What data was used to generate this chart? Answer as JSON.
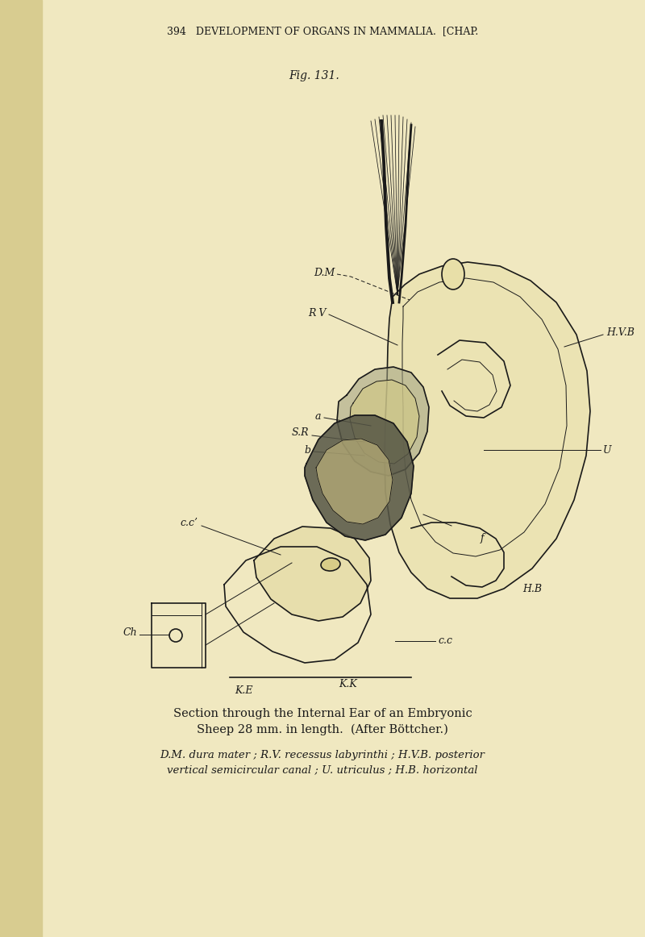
{
  "bg_color": "#f0e8c0",
  "spine_color": "#d8cc90",
  "text_color": "#1a1a1a",
  "header_text": "394   DEVELOPMENT OF ORGANS IN MAMMALIA.  [CHAP.",
  "fig_label": "Fig. 131.",
  "caption_line1": "Section through the Internal Ear of an Embryonic",
  "caption_line2": "Sheep 28 mm. in length.  (After Böttcher.)",
  "caption_line3": "D.M. dura mater ; R.V. recessus labyrinthi ; H.V.B. posterior",
  "caption_line4": "vertical semicircular canal ; U. utriculus ; H.B. horizontal",
  "labels": {
    "DM": "D.M",
    "RV": "R V",
    "HVB": "H.V.B",
    "U": "U",
    "a": "a",
    "SR": "S.R",
    "b": "b",
    "CC1": "c.c’",
    "f": "f",
    "HB": "H.B",
    "Ch": "Ch",
    "CC": "c.c",
    "KK": "K.K",
    "KE": "K.E"
  }
}
